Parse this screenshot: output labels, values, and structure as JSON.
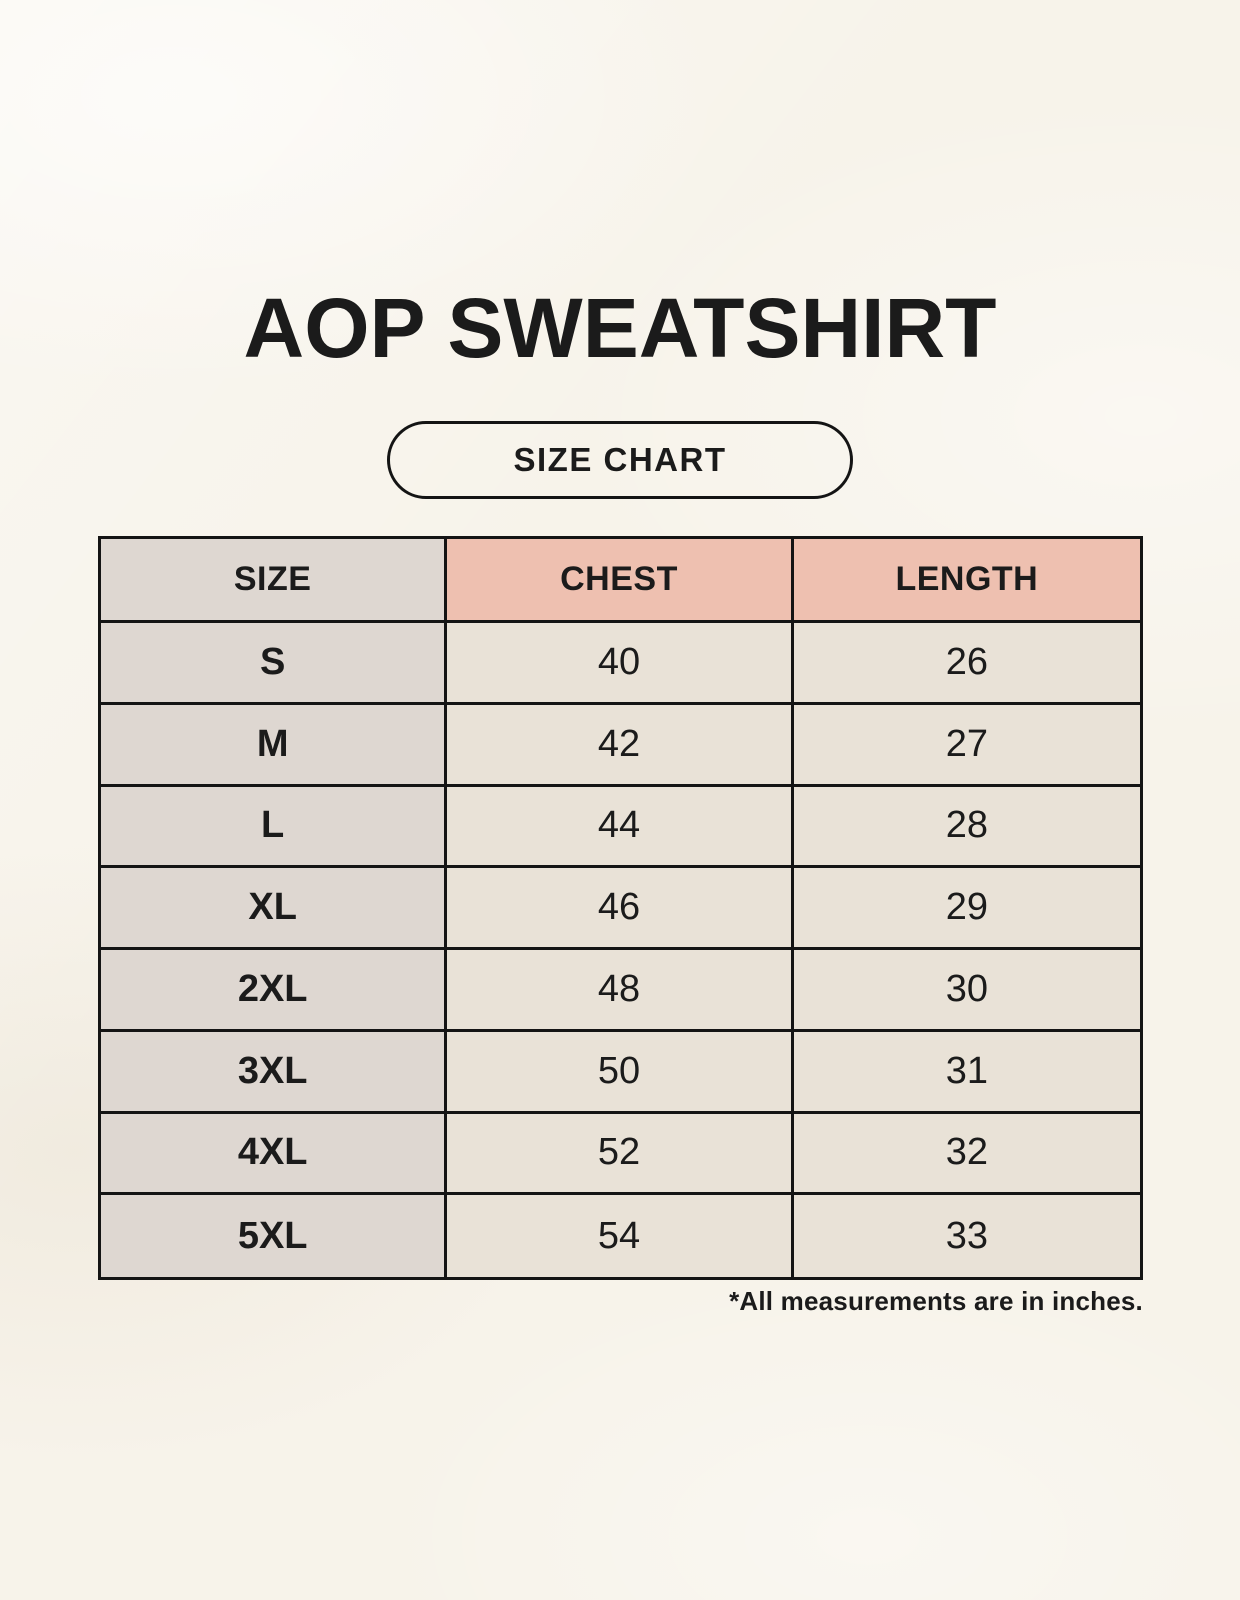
{
  "page": {
    "title": "AOP SWEATSHIRT",
    "size_chart_label": "SIZE CHART",
    "footnote": "*All measurements are in inches."
  },
  "colors": {
    "background": "#F7F3EA",
    "table_border": "#141414",
    "size_column_bg": "#DED7D1",
    "measure_header_bg": "#EEC0B0",
    "data_cell_bg": "#E9E2D7",
    "text": "#1B1B1B"
  },
  "chart_data": {
    "type": "table",
    "title": "AOP SWEATSHIRT",
    "subtitle": "SIZE CHART",
    "columns": [
      "SIZE",
      "CHEST",
      "LENGTH"
    ],
    "rows": [
      [
        "S",
        "40",
        "26"
      ],
      [
        "M",
        "42",
        "27"
      ],
      [
        "L",
        "44",
        "28"
      ],
      [
        "XL",
        "46",
        "29"
      ],
      [
        "2XL",
        "48",
        "30"
      ],
      [
        "3XL",
        "50",
        "31"
      ],
      [
        "4XL",
        "52",
        "32"
      ],
      [
        "5XL",
        "54",
        "33"
      ]
    ],
    "units": "inches",
    "note": "*All measurements are in inches."
  }
}
